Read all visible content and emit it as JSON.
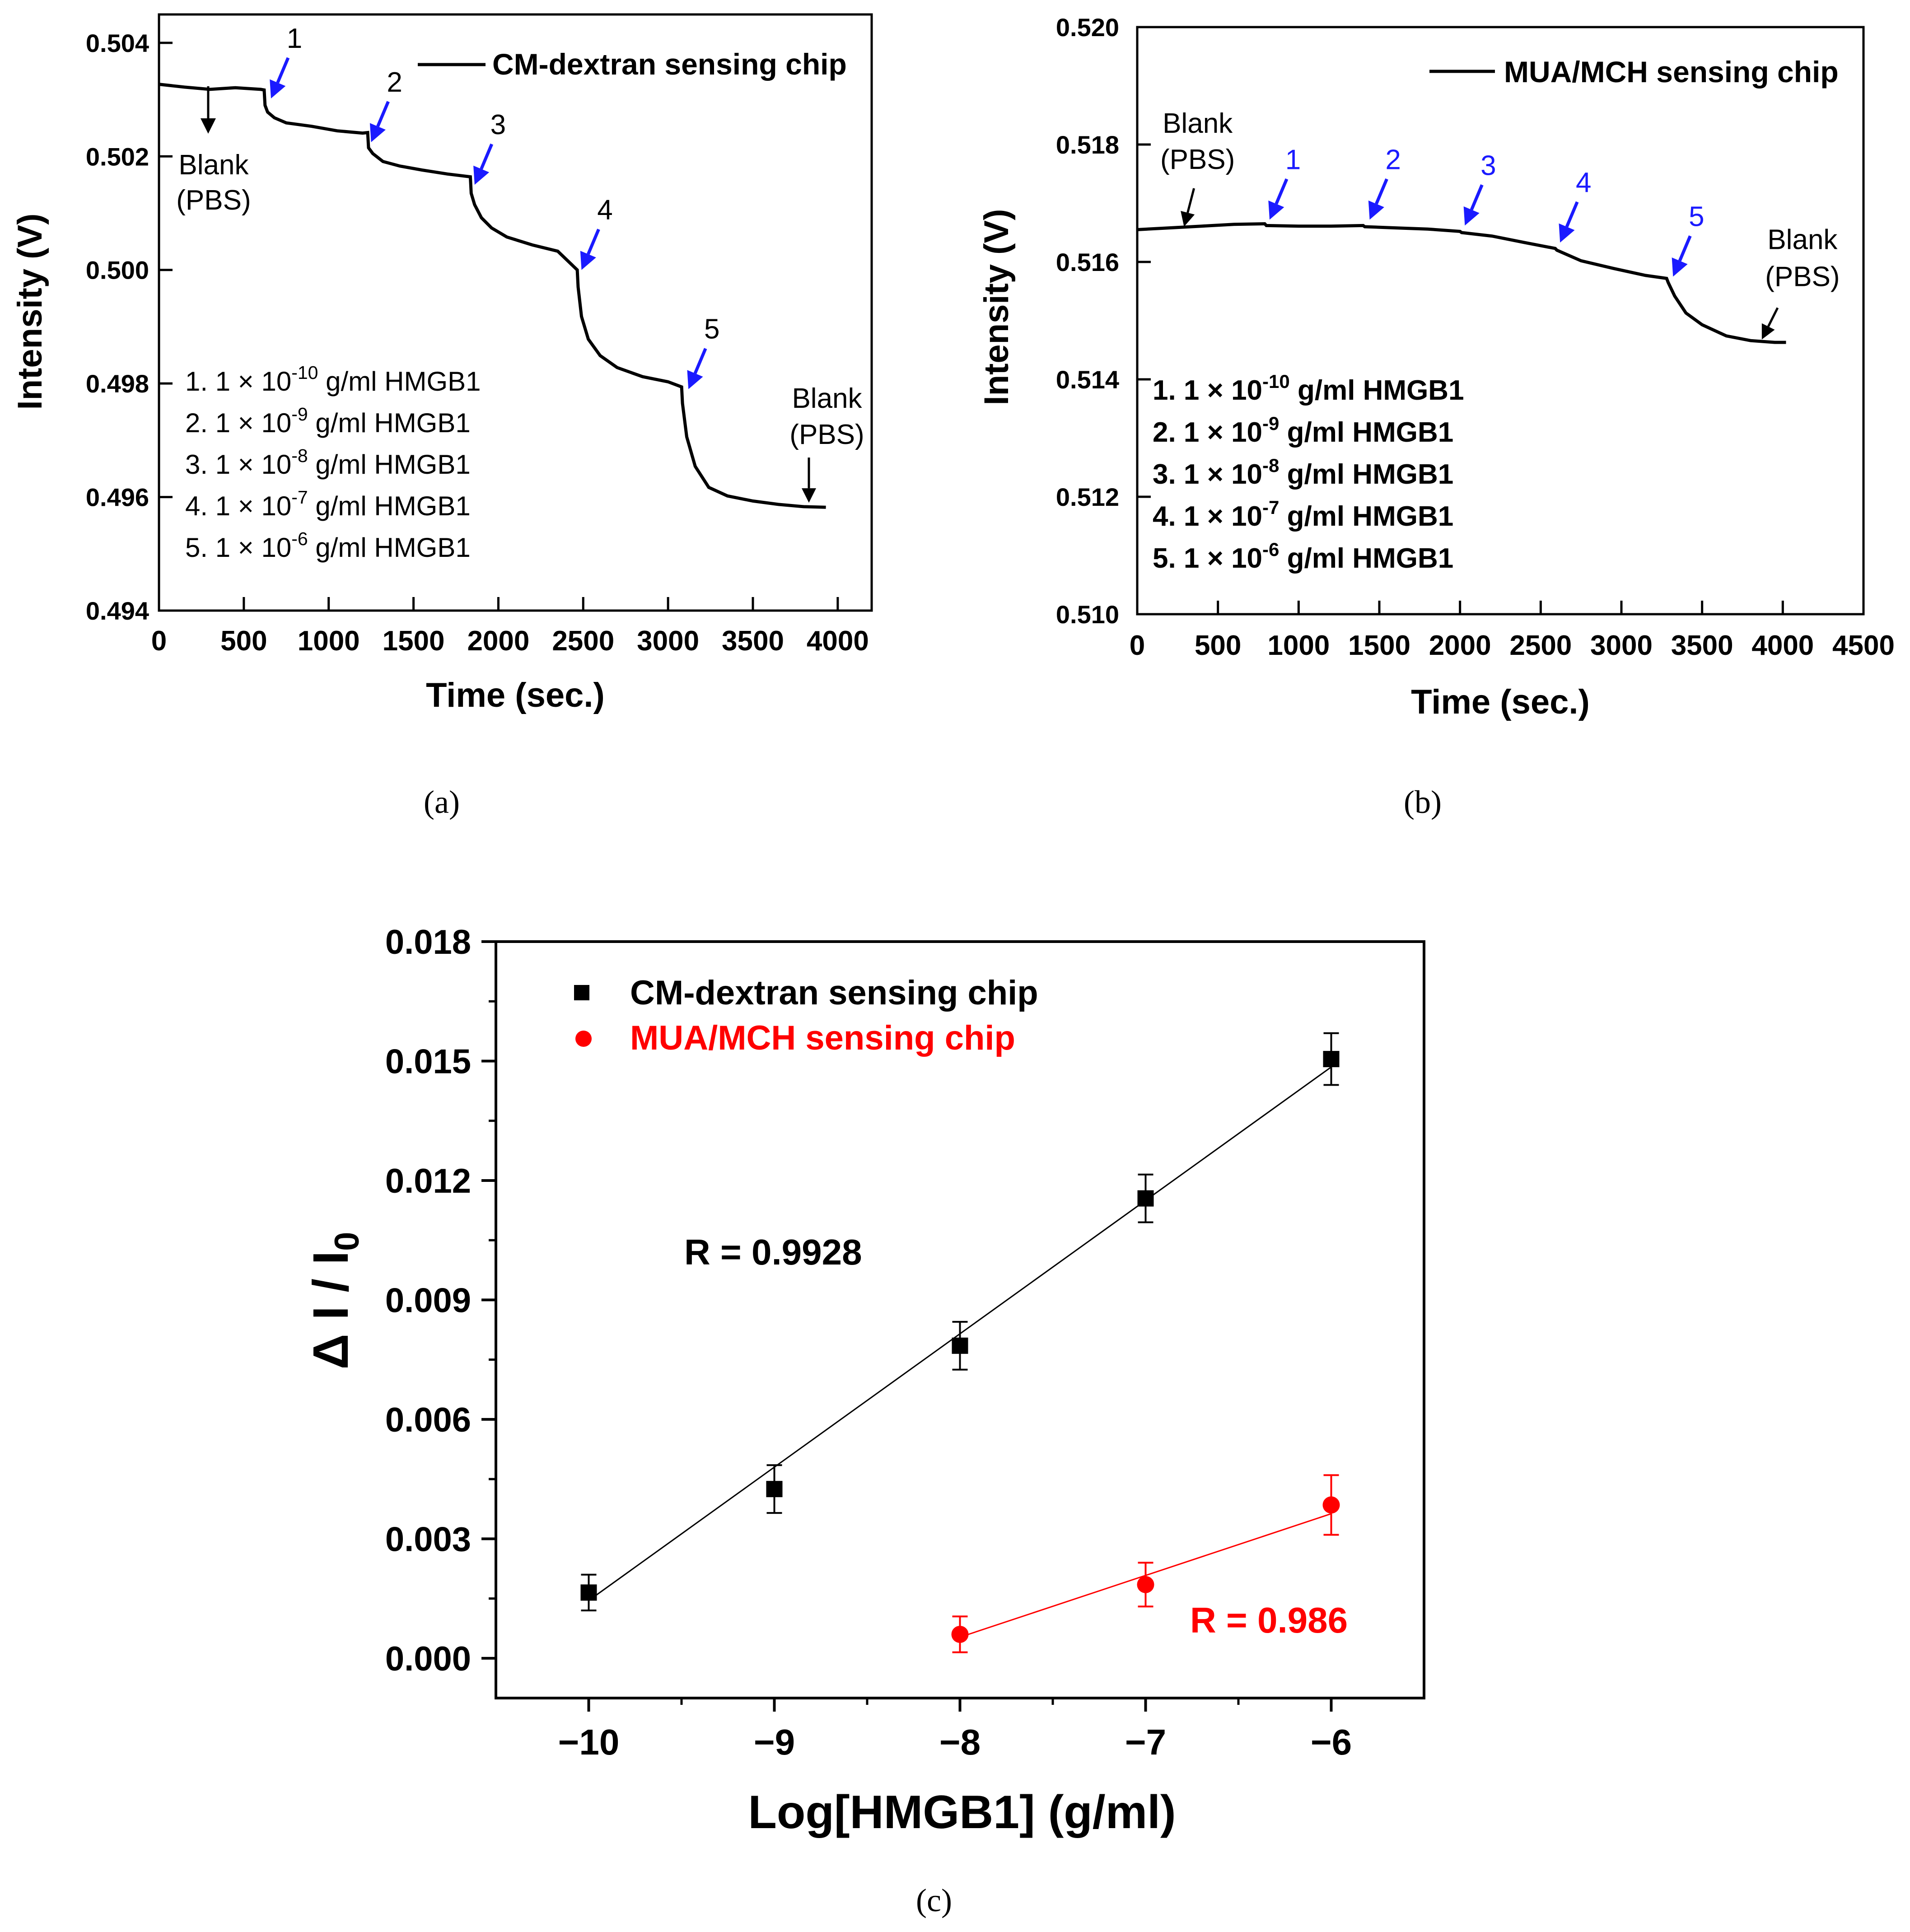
{
  "chart_data": [
    {
      "id": "a",
      "type": "line",
      "caption": "(a)",
      "legend_label": "CM-dextran sensing chip",
      "xlabel": "Time (sec.)",
      "ylabel": "Intensity (V)",
      "xlim": [
        0,
        4200
      ],
      "ylim": [
        0.494,
        0.5045
      ],
      "xticks": [
        "0",
        "500",
        "1000",
        "1500",
        "2000",
        "2500",
        "3000",
        "3500",
        "4000"
      ],
      "yticks": [
        "0.494",
        "0.496",
        "0.498",
        "0.500",
        "0.502",
        "0.504"
      ],
      "series": [
        {
          "name": "CM-dextran sensing chip",
          "color": "#000000",
          "points": [
            [
              0,
              0.50327
            ],
            [
              150,
              0.50322
            ],
            [
              300,
              0.50318
            ],
            [
              450,
              0.50321
            ],
            [
              600,
              0.50318
            ],
            [
              620,
              0.50317
            ],
            [
              625,
              0.5029
            ],
            [
              640,
              0.50278
            ],
            [
              680,
              0.50268
            ],
            [
              750,
              0.50259
            ],
            [
              900,
              0.50253
            ],
            [
              1050,
              0.50245
            ],
            [
              1200,
              0.50241
            ],
            [
              1230,
              0.50242
            ],
            [
              1235,
              0.50215
            ],
            [
              1260,
              0.50205
            ],
            [
              1320,
              0.50191
            ],
            [
              1420,
              0.50183
            ],
            [
              1550,
              0.50176
            ],
            [
              1700,
              0.50169
            ],
            [
              1835,
              0.50164
            ],
            [
              1840,
              0.50135
            ],
            [
              1860,
              0.50115
            ],
            [
              1900,
              0.50092
            ],
            [
              1960,
              0.50074
            ],
            [
              2050,
              0.50058
            ],
            [
              2200,
              0.50044
            ],
            [
              2350,
              0.50033
            ],
            [
              2465,
              0.5
            ],
            [
              2470,
              0.4997
            ],
            [
              2490,
              0.49918
            ],
            [
              2530,
              0.49878
            ],
            [
              2600,
              0.49849
            ],
            [
              2700,
              0.49828
            ],
            [
              2850,
              0.49812
            ],
            [
              3000,
              0.49803
            ],
            [
              3080,
              0.49794
            ],
            [
              3085,
              0.49765
            ],
            [
              3110,
              0.49706
            ],
            [
              3160,
              0.49654
            ],
            [
              3240,
              0.49617
            ],
            [
              3350,
              0.49602
            ],
            [
              3500,
              0.49593
            ],
            [
              3650,
              0.49587
            ],
            [
              3800,
              0.49583
            ],
            [
              3930,
              0.49582
            ]
          ]
        }
      ],
      "arrows": [
        {
          "label": "Blank",
          "label2": "(PBS)",
          "x": 290,
          "y_tip": 0.5024,
          "color": "#000000"
        },
        {
          "label": "1",
          "x": 660,
          "y_tip": 0.50302,
          "color": "#1a1aff"
        },
        {
          "label": "2",
          "x": 1250,
          "y_tip": 0.50225,
          "color": "#1a1aff"
        },
        {
          "label": "3",
          "x": 1860,
          "y_tip": 0.5015,
          "color": "#1a1aff"
        },
        {
          "label": "4",
          "x": 2490,
          "y_tip": 0.5,
          "color": "#1a1aff"
        },
        {
          "label": "5",
          "x": 3120,
          "y_tip": 0.4979,
          "color": "#1a1aff"
        },
        {
          "label": "Blank",
          "label2": "(PBS)",
          "x": 3830,
          "y_tip": 0.4959,
          "color": "#000000"
        }
      ],
      "notes": [
        {
          "prefix": "1. 1 × 10",
          "exp": "-10",
          "suffix": " g/ml  HMGB1"
        },
        {
          "prefix": "2. 1 × 10",
          "exp": "-9",
          "suffix": " g/ml  HMGB1"
        },
        {
          "prefix": "3. 1 × 10",
          "exp": "-8",
          "suffix": " g/ml  HMGB1"
        },
        {
          "prefix": "4. 1 × 10",
          "exp": "-7",
          "suffix": " g/ml  HMGB1"
        },
        {
          "prefix": "5. 1 × 10",
          "exp": "-6",
          "suffix": " g/ml  HMGB1"
        }
      ]
    },
    {
      "id": "b",
      "type": "line",
      "caption": "(b)",
      "legend_label": "MUA/MCH sensing chip",
      "xlabel": "Time (sec.)",
      "ylabel": "Intensity (V)",
      "xlim": [
        0,
        4500
      ],
      "ylim": [
        0.51,
        0.52
      ],
      "xticks": [
        "0",
        "500",
        "1000",
        "1500",
        "2000",
        "2500",
        "3000",
        "3500",
        "4000",
        "4500"
      ],
      "yticks": [
        "0.510",
        "0.512",
        "0.514",
        "0.516",
        "0.518",
        "0.520"
      ],
      "series": [
        {
          "name": "MUA/MCH sensing chip",
          "color": "#000000",
          "points": [
            [
              0,
              0.51655
            ],
            [
              200,
              0.51658
            ],
            [
              400,
              0.51661
            ],
            [
              600,
              0.51664
            ],
            [
              790,
              0.51665
            ],
            [
              800,
              0.51662
            ],
            [
              1000,
              0.51661
            ],
            [
              1200,
              0.51661
            ],
            [
              1400,
              0.51662
            ],
            [
              1410,
              0.5166
            ],
            [
              1600,
              0.51658
            ],
            [
              1800,
              0.51656
            ],
            [
              2000,
              0.51652
            ],
            [
              2010,
              0.5165
            ],
            [
              2200,
              0.51644
            ],
            [
              2400,
              0.51633
            ],
            [
              2590,
              0.51623
            ],
            [
              2600,
              0.5162
            ],
            [
              2750,
              0.51602
            ],
            [
              2950,
              0.51589
            ],
            [
              3150,
              0.51577
            ],
            [
              3280,
              0.51572
            ],
            [
              3290,
              0.51565
            ],
            [
              3330,
              0.51542
            ],
            [
              3400,
              0.51513
            ],
            [
              3500,
              0.51493
            ],
            [
              3650,
              0.51474
            ],
            [
              3800,
              0.51466
            ],
            [
              3950,
              0.51463
            ],
            [
              4020,
              0.51463
            ]
          ]
        }
      ],
      "arrows": [
        {
          "label": "Blank",
          "label2": "(PBS)",
          "x": 290,
          "y_tip": 0.5166,
          "color": "#000000"
        },
        {
          "label": "1",
          "x": 820,
          "y_tip": 0.51672,
          "color": "#1a1aff"
        },
        {
          "label": "2",
          "x": 1440,
          "y_tip": 0.51672,
          "color": "#1a1aff"
        },
        {
          "label": "3",
          "x": 2030,
          "y_tip": 0.51662,
          "color": "#1a1aff"
        },
        {
          "label": "4",
          "x": 2620,
          "y_tip": 0.51633,
          "color": "#1a1aff"
        },
        {
          "label": "5",
          "x": 3320,
          "y_tip": 0.51575,
          "color": "#1a1aff"
        },
        {
          "label": "Blank",
          "label2": "(PBS)",
          "x": 3870,
          "y_tip": 0.51468,
          "color": "#000000"
        }
      ],
      "notes": [
        {
          "prefix": "1. 1 × 10",
          "exp": "-10",
          "suffix": " g/ml  HMGB1"
        },
        {
          "prefix": "2. 1 × 10",
          "exp": "-9",
          "suffix": " g/ml  HMGB1"
        },
        {
          "prefix": "3. 1 × 10",
          "exp": "-8",
          "suffix": " g/ml  HMGB1"
        },
        {
          "prefix": "4. 1 × 10",
          "exp": "-7",
          "suffix": " g/ml  HMGB1"
        },
        {
          "prefix": "5. 1 × 10",
          "exp": "-6",
          "suffix": " g/ml  HMGB1"
        }
      ]
    },
    {
      "id": "c",
      "type": "scatter",
      "caption": "(c)",
      "xlabel": "Log[HMGB1] (g/ml)",
      "ylabel": "Δ I / I",
      "ylabel_sub": "0",
      "xlim": [
        -10.5,
        -5.5
      ],
      "ylim": [
        -0.001,
        0.018
      ],
      "xticks": [
        "−10",
        "−9",
        "−8",
        "−7",
        "−6"
      ],
      "xtick_values": [
        -10,
        -9,
        -8,
        -7,
        -6
      ],
      "yticks": [
        "0.000",
        "0.003",
        "0.006",
        "0.009",
        "0.012",
        "0.015",
        "0.018"
      ],
      "ytick_values": [
        0,
        0.003,
        0.006,
        0.009,
        0.012,
        0.015,
        0.018
      ],
      "series": [
        {
          "name": "CM-dextran sensing chip",
          "marker": "square",
          "color": "#000000",
          "x": [
            -10,
            -9,
            -8,
            -7,
            -6
          ],
          "y": [
            0.00165,
            0.00425,
            0.00785,
            0.01155,
            0.01505
          ],
          "err": [
            0.00045,
            0.0006,
            0.0006,
            0.0006,
            0.00065
          ],
          "fit": {
            "x": [
              -10,
              -6
            ],
            "y": [
              0.00145,
              0.01485
            ]
          },
          "r_label": "R = 0.9928"
        },
        {
          "name": "MUA/MCH sensing chip",
          "marker": "circle",
          "color": "#ff0000",
          "x": [
            -8,
            -7,
            -6
          ],
          "y": [
            0.0006,
            0.00185,
            0.00385
          ],
          "err": [
            0.00045,
            0.00055,
            0.00075
          ],
          "fit": {
            "x": [
              -8,
              -6
            ],
            "y": [
              0.00053,
              0.00363
            ]
          },
          "r_label": "R = 0.986"
        }
      ]
    }
  ]
}
